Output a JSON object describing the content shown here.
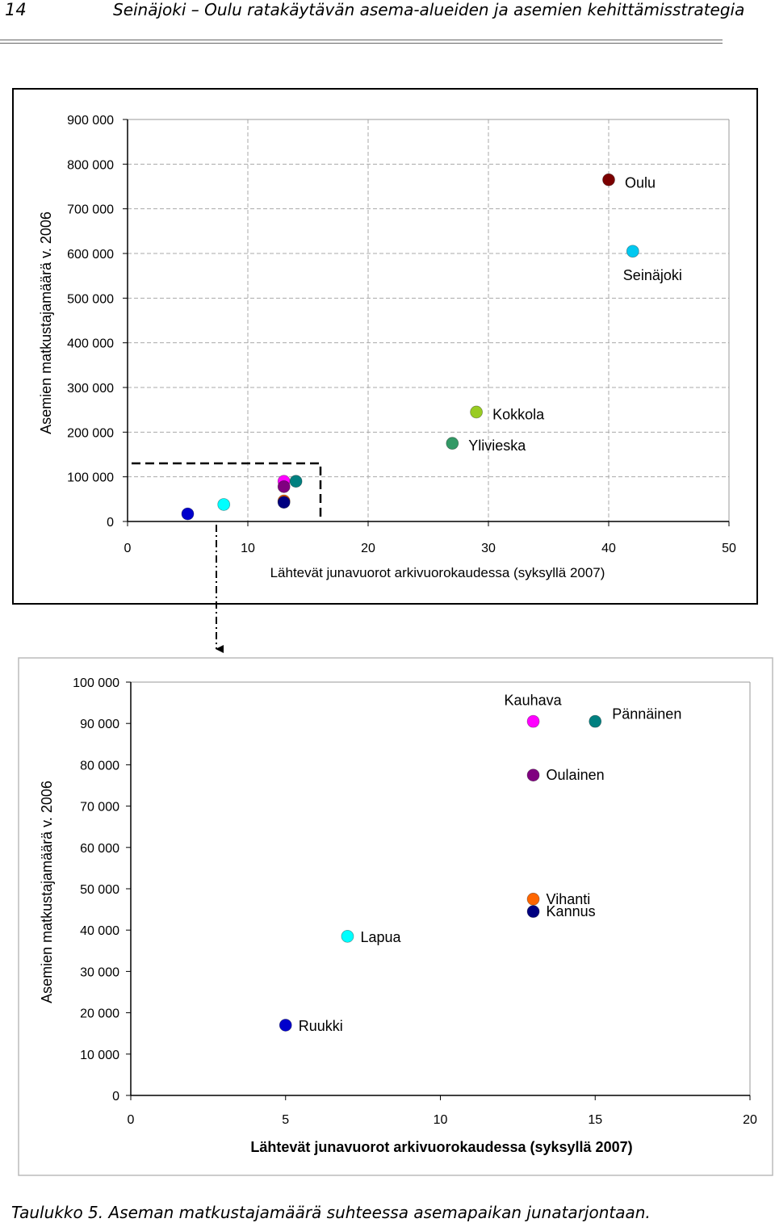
{
  "header": {
    "page_number": "14",
    "title": "Seinäjoki – Oulu ratakäytävän asema-alueiden ja asemien kehittämisstrategia"
  },
  "caption": "Taulukko 5. Aseman matkustajamäärä suhteessa asemapaikan junatarjontaan.",
  "chart_data": [
    {
      "type": "scatter",
      "title": "",
      "xlabel": "Lähtevät junavuorot arkivuorokaudessa (syksyllä 2007)",
      "ylabel": "Asemien matkustajamäärä v. 2006",
      "xlim": [
        0,
        50
      ],
      "ylim": [
        0,
        900000
      ],
      "x_ticks": [
        "0",
        "10",
        "20",
        "30",
        "40",
        "50"
      ],
      "y_ticks": [
        "0",
        "100 000",
        "200 000",
        "300 000",
        "400 000",
        "500 000",
        "600 000",
        "700 000",
        "800 000",
        "900 000"
      ],
      "grid": true,
      "points": [
        {
          "label": "Oulu",
          "x": 40,
          "y": 765000,
          "color": "#7b0000"
        },
        {
          "label": "Seinäjoki",
          "x": 42,
          "y": 605000,
          "color": "#00c8f0"
        },
        {
          "label": "Kokkola",
          "x": 29,
          "y": 245000,
          "color": "#99cc22"
        },
        {
          "label": "Ylivieska",
          "x": 27,
          "y": 175000,
          "color": "#339966"
        },
        {
          "label": "",
          "x": 5,
          "y": 17000,
          "color": "#0000cc"
        },
        {
          "label": "",
          "x": 8,
          "y": 38000,
          "color": "#00ffff"
        },
        {
          "label": "",
          "x": 13,
          "y": 90000,
          "color": "#ff00ff"
        },
        {
          "label": "",
          "x": 14,
          "y": 90000,
          "color": "#008080"
        },
        {
          "label": "",
          "x": 13,
          "y": 78000,
          "color": "#800080"
        },
        {
          "label": "",
          "x": 13,
          "y": 46000,
          "color": "#ff6600"
        },
        {
          "label": "",
          "x": 13,
          "y": 43000,
          "color": "#000080"
        }
      ]
    },
    {
      "type": "scatter",
      "title": "",
      "xlabel": "Lähtevät junavuorot arkivuorokaudessa (syksyllä 2007)",
      "ylabel": "Asemien matkustajamäärä v. 2006",
      "xlim": [
        0,
        20
      ],
      "ylim": [
        0,
        100000
      ],
      "x_ticks": [
        "0",
        "5",
        "10",
        "15",
        "20"
      ],
      "y_ticks": [
        "0",
        "10 000",
        "20 000",
        "30 000",
        "40 000",
        "50 000",
        "60 000",
        "70 000",
        "80 000",
        "90 000",
        "100 000"
      ],
      "grid": false,
      "points": [
        {
          "label": "Kauhava",
          "x": 13,
          "y": 90500,
          "color": "#ff00ff"
        },
        {
          "label": "Pännäinen",
          "x": 15,
          "y": 90500,
          "color": "#008080"
        },
        {
          "label": "Oulainen",
          "x": 13,
          "y": 77500,
          "color": "#800080"
        },
        {
          "label": "Vihanti",
          "x": 13,
          "y": 47500,
          "color": "#ff6600"
        },
        {
          "label": "Kannus",
          "x": 13,
          "y": 44500,
          "color": "#000080"
        },
        {
          "label": "Lapua",
          "x": 7,
          "y": 38500,
          "color": "#00ffff"
        },
        {
          "label": "Ruukki",
          "x": 5,
          "y": 17000,
          "color": "#0000cc"
        }
      ]
    }
  ]
}
